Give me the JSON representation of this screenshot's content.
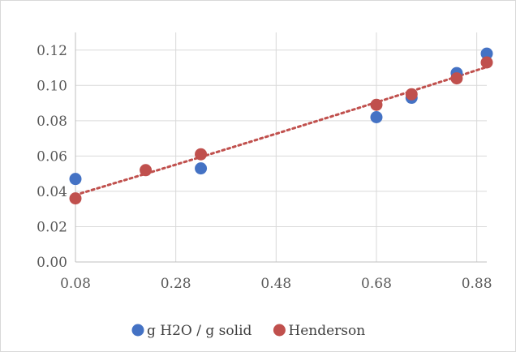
{
  "chart_data": {
    "type": "scatter",
    "title": "",
    "xlabel": "",
    "ylabel": "",
    "xlim": [
      0.08,
      0.9
    ],
    "ylim": [
      0,
      0.13
    ],
    "x_ticks": [
      0.08,
      0.28,
      0.48,
      0.68,
      0.88
    ],
    "x_tick_labels": [
      "0.08",
      "0.28",
      "0.48",
      "0.68",
      "0.88"
    ],
    "y_ticks": [
      0,
      0.02,
      0.04,
      0.06,
      0.08,
      0.1,
      0.12
    ],
    "y_tick_labels": [
      "0.00",
      "0.02",
      "0.04",
      "0.06",
      "0.08",
      "0.10",
      "0.12"
    ],
    "grid": "vertical and horizontal",
    "legend_position": "bottom",
    "series": [
      {
        "name": "g H2O / g solid",
        "color": "#4472c4",
        "marker": "circle",
        "x": [
          0.08,
          0.33,
          0.68,
          0.75,
          0.84,
          0.9
        ],
        "y": [
          0.047,
          0.053,
          0.082,
          0.093,
          0.107,
          0.118
        ]
      },
      {
        "name": "Henderson",
        "color": "#c0504d",
        "marker": "circle",
        "x": [
          0.08,
          0.22,
          0.33,
          0.68,
          0.75,
          0.84,
          0.9
        ],
        "y": [
          0.036,
          0.052,
          0.061,
          0.089,
          0.095,
          0.104,
          0.113
        ]
      }
    ],
    "trendline": {
      "series": "Henderson",
      "style": "dotted",
      "color": "#c0504d",
      "shape": "curve"
    }
  }
}
